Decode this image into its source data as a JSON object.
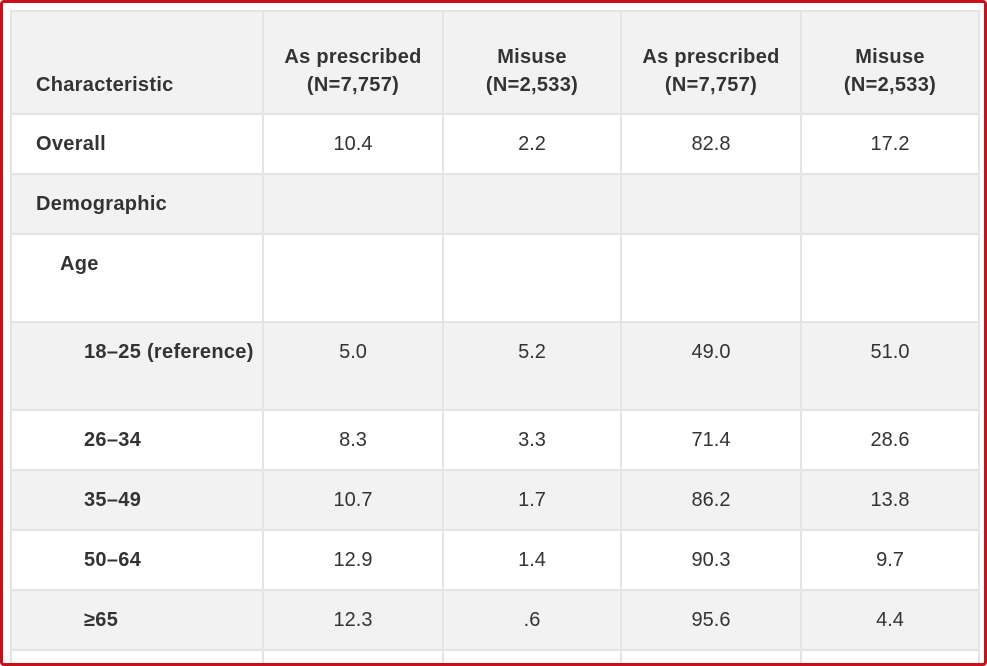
{
  "table": {
    "header": [
      "Characteristic",
      "As prescribed (N=7,757)",
      "Misuse (N=2,533)",
      "As prescribed (N=7,757)",
      "Misuse (N=2,533)"
    ],
    "rows": [
      {
        "label": "Overall",
        "values": [
          "10.4",
          "2.2",
          "82.8",
          "17.2"
        ]
      },
      {
        "label": "Demographic",
        "values": []
      },
      {
        "label": "Age",
        "values": []
      },
      {
        "label": "18–25 (reference)",
        "values": [
          "5.0",
          "5.2",
          "49.0",
          "51.0"
        ]
      },
      {
        "label": "26–34",
        "values": [
          "8.3",
          "3.3",
          "71.4",
          "28.6"
        ]
      },
      {
        "label": "35–49",
        "values": [
          "10.7",
          "1.7",
          "86.2",
          "13.8"
        ]
      },
      {
        "label": "50–64",
        "values": [
          "12.9",
          "1.4",
          "90.3",
          "9.7"
        ]
      },
      {
        "label": "≥65",
        "values": [
          "12.3",
          ".6",
          "95.6",
          "4.4"
        ]
      }
    ]
  }
}
